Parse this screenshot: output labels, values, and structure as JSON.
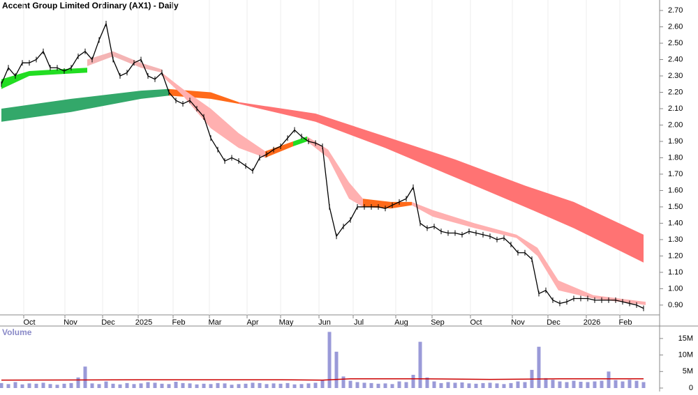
{
  "chart_data": [
    {
      "type": "line",
      "title": "Accent Group Limited Ordinary (AX1) - Daily",
      "xlim": [
        -0.2,
        94.3
      ],
      "xticks": [
        {
          "value": 4,
          "label": "Oct"
        },
        {
          "value": 9.9,
          "label": "Nov"
        },
        {
          "value": 15.3,
          "label": "Dec"
        },
        {
          "value": 20.4,
          "label": "2025"
        },
        {
          "value": 25.4,
          "label": "Feb"
        },
        {
          "value": 30.6,
          "label": "Mar"
        },
        {
          "value": 36,
          "label": "Apr"
        },
        {
          "value": 40.8,
          "label": "May"
        },
        {
          "value": 46.3,
          "label": "Jun"
        },
        {
          "value": 51.2,
          "label": "Jul"
        },
        {
          "value": 57.3,
          "label": "Aug"
        },
        {
          "value": 62.5,
          "label": "Sep"
        },
        {
          "value": 68,
          "label": "Oct"
        },
        {
          "value": 74,
          "label": "Nov"
        },
        {
          "value": 79.1,
          "label": "Dec"
        },
        {
          "value": 84.6,
          "label": "2026"
        },
        {
          "value": 89.4,
          "label": "Feb"
        }
      ],
      "ylim": [
        0.84,
        2.764
      ],
      "yticks": [
        {
          "value": 0.9,
          "label": "0.90"
        },
        {
          "value": 1.0,
          "label": "1.00"
        },
        {
          "value": 1.1,
          "label": "1.10"
        },
        {
          "value": 1.2,
          "label": "1.20"
        },
        {
          "value": 1.3,
          "label": "1.30"
        },
        {
          "value": 1.4,
          "label": "1.40"
        },
        {
          "value": 1.5,
          "label": "1.50"
        },
        {
          "value": 1.6,
          "label": "1.60"
        },
        {
          "value": 1.7,
          "label": "1.70"
        },
        {
          "value": 1.8,
          "label": "1.80"
        },
        {
          "value": 1.9,
          "label": "1.90"
        },
        {
          "value": 2.0,
          "label": "2.00"
        },
        {
          "value": 2.1,
          "label": "2.10"
        },
        {
          "value": 2.2,
          "label": "2.20"
        },
        {
          "value": 2.3,
          "label": "2.30"
        },
        {
          "value": 2.4,
          "label": "2.40"
        },
        {
          "value": 2.5,
          "label": "2.50"
        },
        {
          "value": 2.6,
          "label": "2.60"
        },
        {
          "value": 2.7,
          "label": "2.70"
        }
      ],
      "series": [
        {
          "color": "#000000",
          "values": [
            2.25,
            2.35,
            2.3,
            2.38,
            2.38,
            2.4,
            2.45,
            2.35,
            2.35,
            2.33,
            2.35,
            2.42,
            2.45,
            2.4,
            2.52,
            2.62,
            2.4,
            2.3,
            2.32,
            2.38,
            2.4,
            2.3,
            2.28,
            2.32,
            2.2,
            2.15,
            2.13,
            2.15,
            2.1,
            2.05,
            1.92,
            1.85,
            1.78,
            1.8,
            1.78,
            1.75,
            1.72,
            1.8,
            1.82,
            1.85,
            1.87,
            1.92,
            1.97,
            1.93,
            1.9,
            1.89,
            1.87,
            1.5,
            1.32,
            1.38,
            1.42,
            1.5,
            1.5,
            1.5,
            1.5,
            1.49,
            1.51,
            1.53,
            1.55,
            1.62,
            1.4,
            1.37,
            1.38,
            1.35,
            1.34,
            1.34,
            1.33,
            1.35,
            1.34,
            1.33,
            1.32,
            1.3,
            1.31,
            1.27,
            1.22,
            1.22,
            1.18,
            0.97,
            0.99,
            0.93,
            0.91,
            0.92,
            0.94,
            0.94,
            0.94,
            0.93,
            0.93,
            0.93,
            0.93,
            0.92,
            0.91,
            0.9,
            0.88
          ]
        }
      ],
      "ribbons": [
        {
          "color": "#33a86a",
          "x": [
            0,
            10,
            20,
            24
          ],
          "upper": [
            2.1,
            2.16,
            2.21,
            2.22
          ],
          "lower": [
            2.02,
            2.08,
            2.16,
            2.18
          ]
        },
        {
          "color": "#ff6a1a",
          "x": [
            24,
            30,
            34
          ],
          "upper": [
            2.22,
            2.2,
            2.14
          ],
          "lower": [
            2.18,
            2.16,
            2.13
          ]
        },
        {
          "color": "#ff7373",
          "x": [
            34,
            45,
            55,
            65,
            75,
            82,
            92
          ],
          "upper": [
            2.14,
            2.07,
            1.93,
            1.79,
            1.63,
            1.53,
            1.33
          ],
          "lower": [
            2.13,
            2.02,
            1.86,
            1.68,
            1.5,
            1.37,
            1.16
          ]
        },
        {
          "color": "#22dd22",
          "x": [
            0,
            4,
            8,
            12.3
          ],
          "upper": [
            2.28,
            2.33,
            2.34,
            2.35
          ],
          "lower": [
            2.22,
            2.3,
            2.31,
            2.32
          ]
        },
        {
          "color": "#f4b4b4",
          "x": [
            12.3,
            16,
            20,
            23
          ],
          "upper": [
            2.4,
            2.45,
            2.38,
            2.34
          ],
          "lower": [
            2.36,
            2.42,
            2.35,
            2.32
          ]
        },
        {
          "color": "#ffb0b0",
          "x": [
            23,
            26,
            30,
            34,
            37.8
          ],
          "upper": [
            2.32,
            2.22,
            2.1,
            1.95,
            1.84
          ],
          "lower": [
            2.3,
            2.18,
            1.98,
            1.86,
            1.8
          ]
        },
        {
          "color": "#ff6a1a",
          "x": [
            37.8,
            41.8
          ],
          "upper": [
            1.84,
            1.9
          ],
          "lower": [
            1.8,
            1.87
          ]
        },
        {
          "color": "#22dd22",
          "x": [
            41.8,
            43.8
          ],
          "upper": [
            1.9,
            1.93
          ],
          "lower": [
            1.87,
            1.9
          ]
        },
        {
          "color": "#ffb0b0",
          "x": [
            43.8,
            46.8,
            49.8,
            51.8
          ],
          "upper": [
            1.93,
            1.85,
            1.65,
            1.55
          ],
          "lower": [
            1.9,
            1.8,
            1.55,
            1.5
          ]
        },
        {
          "color": "#ff6a1a",
          "x": [
            51.8,
            55.8,
            58.8
          ],
          "upper": [
            1.55,
            1.53,
            1.53
          ],
          "lower": [
            1.5,
            1.49,
            1.51
          ]
        },
        {
          "color": "#ffb0b0",
          "x": [
            58.8,
            61.8,
            67.8,
            73.8,
            76.8,
            79.8,
            84.8,
            92.3
          ],
          "upper": [
            1.53,
            1.48,
            1.4,
            1.33,
            1.25,
            1.05,
            0.96,
            0.92
          ],
          "lower": [
            1.51,
            1.44,
            1.37,
            1.31,
            1.2,
            0.99,
            0.94,
            0.9
          ]
        }
      ]
    },
    {
      "type": "bar",
      "title": "Volume",
      "xlim": [
        -0.2,
        94.3
      ],
      "ylim": [
        0,
        18350000
      ],
      "yticks": [
        0,
        {
          "value": 5000000,
          "label": "5M"
        },
        {
          "value": 10000000,
          "label": "10M"
        },
        {
          "value": 15000000,
          "label": "15M"
        }
      ],
      "color": "#9a9ad8",
      "values": [
        1500000,
        1200000,
        1800000,
        1100000,
        1400000,
        1300000,
        1600000,
        1200000,
        1000000,
        1300000,
        1500000,
        3200000,
        6500000,
        1400000,
        1200000,
        2000000,
        1300000,
        1100000,
        1500000,
        1200000,
        1400000,
        1800000,
        1600000,
        1300000,
        1200000,
        1900000,
        1500000,
        1400000,
        1100000,
        1300000,
        1200000,
        1500000,
        1400000,
        1000000,
        1200000,
        1300000,
        1600000,
        1500000,
        1200000,
        1400000,
        1300000,
        1500000,
        1100000,
        1200000,
        1400000,
        1600000,
        2500000,
        17000000,
        11000000,
        3500000,
        2200000,
        1800000,
        1600000,
        1500000,
        1300000,
        1400000,
        1200000,
        2000000,
        1800000,
        4000000,
        14000000,
        3200000,
        2000000,
        1500000,
        1800000,
        1600000,
        1700000,
        1400000,
        1300000,
        1500000,
        1600000,
        1400000,
        1200000,
        1500000,
        2000000,
        1800000,
        5500000,
        12500000,
        3000000,
        2500000,
        2000000,
        1800000,
        2200000,
        1900000,
        1800000,
        2000000,
        2200000,
        5000000,
        2400000,
        2000000,
        2500000,
        2200000,
        1800000
      ],
      "average": {
        "color": "#cc0000",
        "x": [
          0,
          20,
          40,
          46,
          50,
          60,
          70,
          80,
          92
        ],
        "values": [
          2400000,
          2500000,
          2500000,
          2400000,
          2800000,
          2800000,
          2600000,
          2800000,
          2800000
        ]
      }
    }
  ]
}
